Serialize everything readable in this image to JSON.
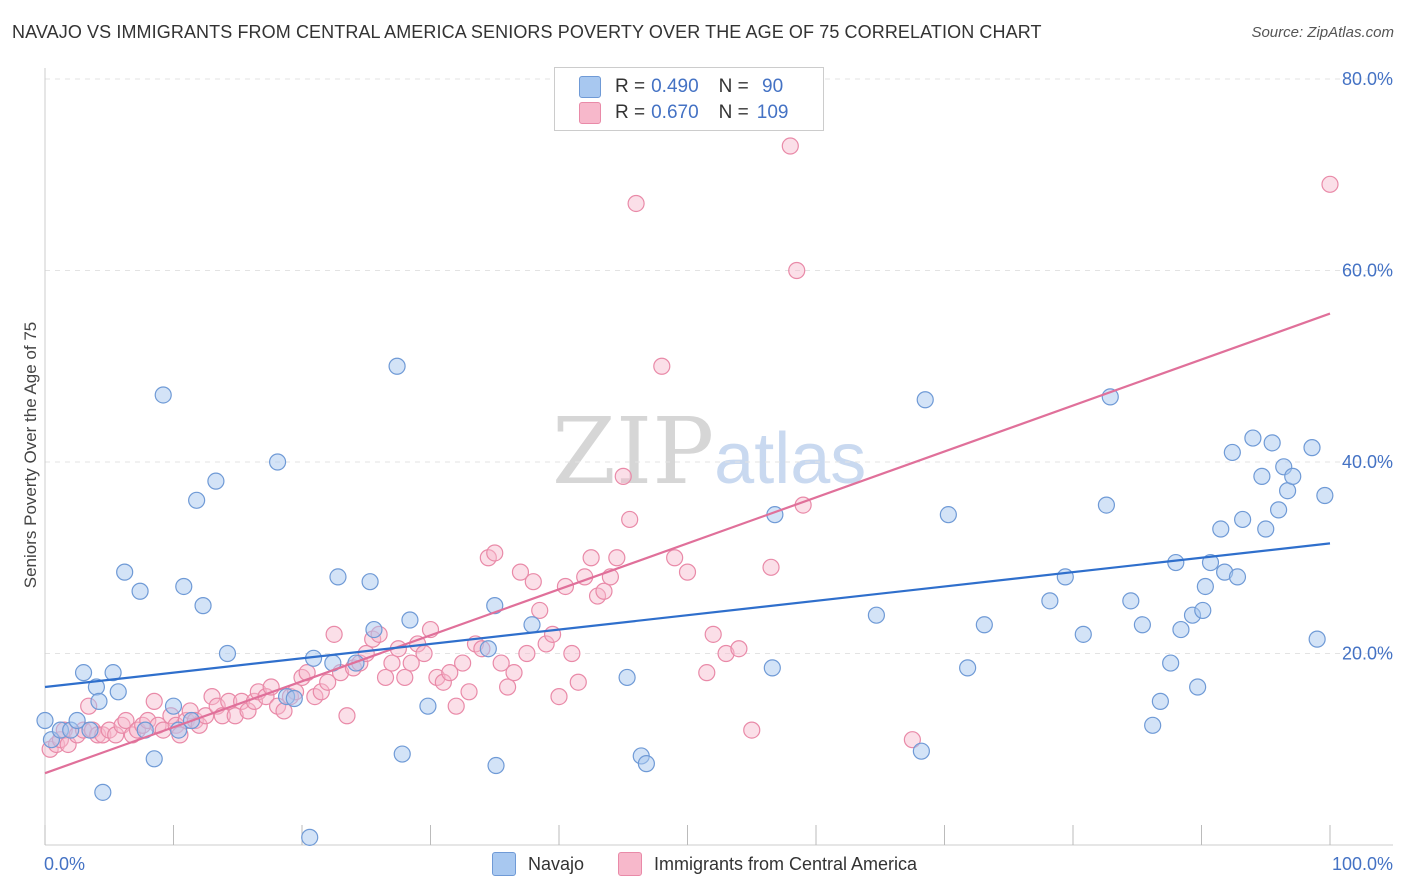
{
  "title": "NAVAJO VS IMMIGRANTS FROM CENTRAL AMERICA SENIORS POVERTY OVER THE AGE OF 75 CORRELATION CHART",
  "source": "Source: ZipAtlas.com",
  "watermark": {
    "zip": "ZIP",
    "atlas": "atlas"
  },
  "legend": {
    "rows": [
      {
        "r_label": "R = ",
        "r_value": "0.490",
        "n_label": "N = ",
        "n_value": " 90"
      },
      {
        "r_label": "R = ",
        "r_value": "0.670",
        "n_label": "N = ",
        "n_value": "109"
      }
    ]
  },
  "bottom_legend": [
    "Navajo",
    "Immigrants from Central America"
  ],
  "colors": {
    "navajo_fill": "#a8c8f0",
    "navajo_stroke": "#6f9ad6",
    "navajo_line": "#2f6fcc",
    "imm_fill": "#f7b8cb",
    "imm_stroke": "#e98aa8",
    "imm_line": "#e0709a",
    "grid": "#e3e3e3",
    "tick_text": "#4472c4"
  },
  "chart_data": {
    "type": "scatter",
    "title": "NAVAJO VS IMMIGRANTS FROM CENTRAL AMERICA SENIORS POVERTY OVER THE AGE OF 75 CORRELATION CHART",
    "xlabel": "",
    "ylabel": "Seniors Poverty Over the Age of 75",
    "xlim": [
      0,
      100
    ],
    "ylim": [
      0,
      80
    ],
    "x_tick_labels": [
      "0.0%",
      "100.0%"
    ],
    "y_ticks": [
      20,
      40,
      60,
      80
    ],
    "y_tick_labels": [
      "20.0%",
      "40.0%",
      "60.0%",
      "80.0%"
    ],
    "grid": true,
    "legend_position": "top-center",
    "series": [
      {
        "name": "Navajo",
        "r": 0.49,
        "n": 90,
        "trend": [
          [
            0,
            16.5
          ],
          [
            100,
            31.5
          ]
        ],
        "points": [
          [
            0,
            13
          ],
          [
            0.5,
            11
          ],
          [
            1.2,
            12
          ],
          [
            2,
            12
          ],
          [
            2.5,
            13
          ],
          [
            3,
            18
          ],
          [
            3.5,
            12
          ],
          [
            4,
            16.5
          ],
          [
            4.2,
            15
          ],
          [
            4.5,
            5.5
          ],
          [
            5.3,
            18
          ],
          [
            5.7,
            16
          ],
          [
            6.2,
            28.5
          ],
          [
            7.4,
            26.5
          ],
          [
            7.8,
            12
          ],
          [
            8.5,
            9
          ],
          [
            9.2,
            47
          ],
          [
            10,
            14.5
          ],
          [
            10.4,
            12
          ],
          [
            10.8,
            27
          ],
          [
            11.4,
            13
          ],
          [
            11.8,
            36
          ],
          [
            12.3,
            25
          ],
          [
            13.3,
            38
          ],
          [
            14.2,
            20
          ],
          [
            18.1,
            40
          ],
          [
            18.8,
            15.5
          ],
          [
            19.4,
            15.3
          ],
          [
            20.6,
            0.8
          ],
          [
            20.9,
            19.5
          ],
          [
            22.4,
            19
          ],
          [
            22.8,
            28
          ],
          [
            24.2,
            19
          ],
          [
            25.3,
            27.5
          ],
          [
            25.6,
            22.5
          ],
          [
            27.4,
            50
          ],
          [
            27.8,
            9.5
          ],
          [
            28.4,
            23.5
          ],
          [
            29.8,
            14.5
          ],
          [
            34.5,
            20.5
          ],
          [
            35,
            25
          ],
          [
            35.1,
            8.3
          ],
          [
            37.9,
            23
          ],
          [
            45.3,
            17.5
          ],
          [
            46.4,
            9.3
          ],
          [
            46.8,
            8.5
          ],
          [
            56.6,
            18.5
          ],
          [
            56.8,
            34.5
          ],
          [
            64.7,
            24
          ],
          [
            68.2,
            9.8
          ],
          [
            68.5,
            46.5
          ],
          [
            70.3,
            34.5
          ],
          [
            71.8,
            18.5
          ],
          [
            73.1,
            23
          ],
          [
            78.2,
            25.5
          ],
          [
            79.4,
            28
          ],
          [
            80.8,
            22
          ],
          [
            82.6,
            35.5
          ],
          [
            82.9,
            46.8
          ],
          [
            84.5,
            25.5
          ],
          [
            85.4,
            23
          ],
          [
            86.2,
            12.5
          ],
          [
            86.8,
            15
          ],
          [
            87.6,
            19
          ],
          [
            88,
            29.5
          ],
          [
            88.4,
            22.5
          ],
          [
            89.3,
            24
          ],
          [
            89.7,
            16.5
          ],
          [
            90.1,
            24.5
          ],
          [
            90.3,
            27
          ],
          [
            90.7,
            29.5
          ],
          [
            91.5,
            33
          ],
          [
            91.8,
            28.5
          ],
          [
            92.4,
            41
          ],
          [
            92.8,
            28
          ],
          [
            93.2,
            34
          ],
          [
            94,
            42.5
          ],
          [
            94.7,
            38.5
          ],
          [
            95,
            33
          ],
          [
            95.5,
            42
          ],
          [
            96,
            35
          ],
          [
            96.4,
            39.5
          ],
          [
            96.7,
            37
          ],
          [
            97.1,
            38.5
          ],
          [
            98.6,
            41.5
          ],
          [
            99,
            21.5
          ],
          [
            99.6,
            36.5
          ]
        ]
      },
      {
        "name": "Immigrants from Central America",
        "r": 0.67,
        "n": 109,
        "trend": [
          [
            0,
            7.5
          ],
          [
            100,
            55.5
          ]
        ],
        "points": [
          [
            0.4,
            10
          ],
          [
            0.9,
            10.5
          ],
          [
            1.2,
            11
          ],
          [
            1.5,
            12
          ],
          [
            1.8,
            10.5
          ],
          [
            2.5,
            11.5
          ],
          [
            3,
            12
          ],
          [
            3.4,
            14.5
          ],
          [
            3.7,
            12
          ],
          [
            4.1,
            11.5
          ],
          [
            4.5,
            11.5
          ],
          [
            5,
            12
          ],
          [
            5.5,
            11.5
          ],
          [
            6,
            12.5
          ],
          [
            6.3,
            13
          ],
          [
            6.8,
            11.5
          ],
          [
            7.2,
            12
          ],
          [
            7.6,
            12.5
          ],
          [
            8,
            13
          ],
          [
            8.5,
            15
          ],
          [
            8.8,
            12.5
          ],
          [
            9.2,
            12
          ],
          [
            9.8,
            13.5
          ],
          [
            10.2,
            12.5
          ],
          [
            10.5,
            11.5
          ],
          [
            11,
            13
          ],
          [
            11.3,
            14
          ],
          [
            11.7,
            13
          ],
          [
            12,
            12.5
          ],
          [
            12.5,
            13.5
          ],
          [
            13,
            15.5
          ],
          [
            13.4,
            14.5
          ],
          [
            13.8,
            13.5
          ],
          [
            14.3,
            15
          ],
          [
            14.8,
            13.5
          ],
          [
            15.3,
            15
          ],
          [
            15.8,
            14
          ],
          [
            16.3,
            15
          ],
          [
            16.6,
            16
          ],
          [
            17.2,
            15.5
          ],
          [
            17.6,
            16.5
          ],
          [
            18.1,
            14.5
          ],
          [
            18.6,
            14
          ],
          [
            19.1,
            15.5
          ],
          [
            19.5,
            16
          ],
          [
            20,
            17.5
          ],
          [
            20.4,
            18
          ],
          [
            21,
            15.5
          ],
          [
            21.5,
            16
          ],
          [
            22,
            17
          ],
          [
            22.5,
            22
          ],
          [
            23,
            18
          ],
          [
            23.5,
            13.5
          ],
          [
            24,
            18.5
          ],
          [
            24.5,
            19
          ],
          [
            25,
            20
          ],
          [
            25.5,
            21.5
          ],
          [
            26,
            22
          ],
          [
            26.5,
            17.5
          ],
          [
            27,
            19
          ],
          [
            27.5,
            20.5
          ],
          [
            28,
            17.5
          ],
          [
            28.5,
            19
          ],
          [
            29,
            21
          ],
          [
            29.5,
            20
          ],
          [
            30,
            22.5
          ],
          [
            30.5,
            17.5
          ],
          [
            31,
            17
          ],
          [
            31.5,
            18
          ],
          [
            32,
            14.5
          ],
          [
            32.5,
            19
          ],
          [
            33,
            16
          ],
          [
            33.5,
            21
          ],
          [
            34,
            20.5
          ],
          [
            34.5,
            30
          ],
          [
            35,
            30.5
          ],
          [
            35.5,
            19
          ],
          [
            36,
            16.5
          ],
          [
            36.5,
            18
          ],
          [
            37,
            28.5
          ],
          [
            37.5,
            20
          ],
          [
            38,
            27.5
          ],
          [
            38.5,
            24.5
          ],
          [
            39,
            21
          ],
          [
            39.5,
            22
          ],
          [
            40,
            15.5
          ],
          [
            40.5,
            27
          ],
          [
            41,
            20
          ],
          [
            41.5,
            17
          ],
          [
            42,
            28
          ],
          [
            42.5,
            30
          ],
          [
            43,
            26
          ],
          [
            43.5,
            26.5
          ],
          [
            44,
            28
          ],
          [
            44.5,
            30
          ],
          [
            45,
            38.5
          ],
          [
            45.5,
            34
          ],
          [
            46,
            67
          ],
          [
            48,
            50
          ],
          [
            49,
            30
          ],
          [
            50,
            28.5
          ],
          [
            51.5,
            18
          ],
          [
            52,
            22
          ],
          [
            53,
            20
          ],
          [
            54,
            20.5
          ],
          [
            55,
            12
          ],
          [
            56.5,
            29
          ],
          [
            58,
            73
          ],
          [
            58.5,
            60
          ],
          [
            59,
            35.5
          ],
          [
            67.5,
            11
          ],
          [
            100,
            69
          ]
        ]
      }
    ]
  }
}
